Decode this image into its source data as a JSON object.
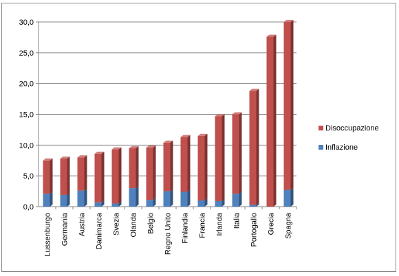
{
  "chart_data": {
    "type": "bar",
    "stacked": true,
    "style": "3d-column",
    "categories": [
      "Lussenburgo",
      "Germania",
      "Austria",
      "Danimarca",
      "Svezia",
      "Olanda",
      "Belgio",
      "Regno Unito",
      "Finlandia",
      "Francia",
      "Irlanda",
      "Italia",
      "Portogallo",
      "Grecia",
      "Spagna"
    ],
    "series": [
      {
        "name": "Inflazione",
        "color": "#4F81BD",
        "values": [
          2.1,
          1.9,
          2.6,
          0.7,
          0.5,
          3.0,
          1.1,
          2.5,
          2.4,
          1.0,
          0.9,
          2.1,
          0.3,
          0.0,
          2.7
        ]
      },
      {
        "name": "Disoccupazione",
        "color": "#C0504D",
        "values": [
          5.4,
          5.9,
          5.4,
          7.9,
          8.8,
          6.5,
          8.5,
          7.9,
          8.9,
          10.5,
          13.8,
          12.9,
          18.5,
          27.6,
          27.3
        ]
      }
    ],
    "ylim": [
      0,
      30
    ],
    "yticks": [
      "0,0",
      "5,0",
      "10,0",
      "15,0",
      "20,0",
      "25,0",
      "30,0"
    ],
    "grid": true,
    "legend_position": "right",
    "legend_order": [
      "Disoccupazione",
      "Inflazione"
    ],
    "title": "",
    "xlabel": "",
    "ylabel": ""
  }
}
